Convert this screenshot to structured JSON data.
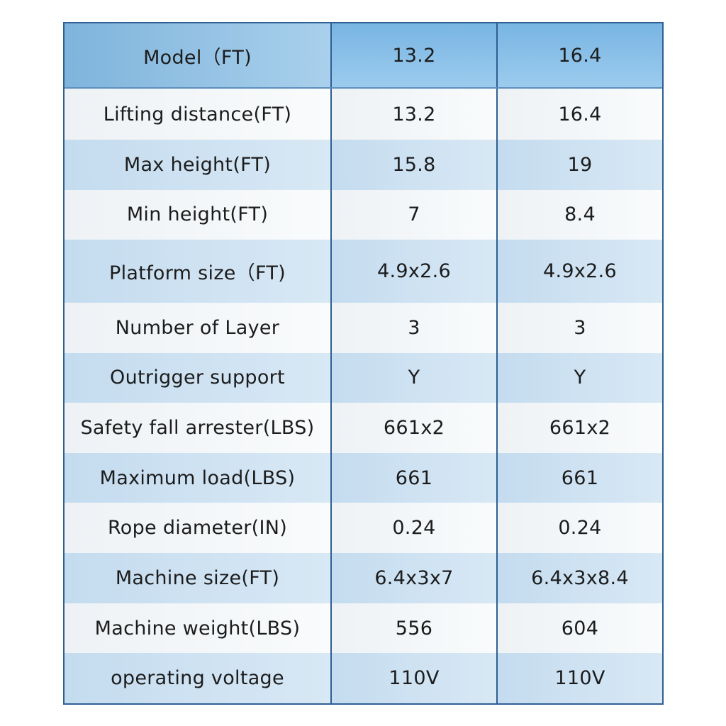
{
  "table": {
    "header": [
      "Model（FT)",
      "13.2",
      "16.4"
    ],
    "rows": [
      [
        "Lifting distance(FT)",
        "13.2",
        "16.4"
      ],
      [
        "Max height(FT)",
        "15.8",
        "19"
      ],
      [
        "Min height(FT)",
        "7",
        "8.4"
      ],
      [
        "Platform size（FT)",
        "4.9x2.6",
        "4.9x2.6"
      ],
      [
        "Number of Layer",
        "3",
        "3"
      ],
      [
        "Outrigger support",
        "Y",
        "Y"
      ],
      [
        "Safety fall arrester(LBS)",
        "661x2",
        "661x2"
      ],
      [
        "Maximum load(LBS)",
        "661",
        "661"
      ],
      [
        "Rope diameter(IN)",
        "0.24",
        "0.24"
      ],
      [
        "Machine size(FT)",
        "6.4x3x7",
        "6.4x3x8.4"
      ],
      [
        "Machine weight(LBS)",
        "556",
        "604"
      ],
      [
        "operating voltage",
        "110V",
        "110V"
      ]
    ]
  },
  "colors": {
    "border": "#2f5f93",
    "header_bg": "#8ec3e8",
    "row_light": "#f3f6f8",
    "row_blue": "#cde2f2"
  }
}
